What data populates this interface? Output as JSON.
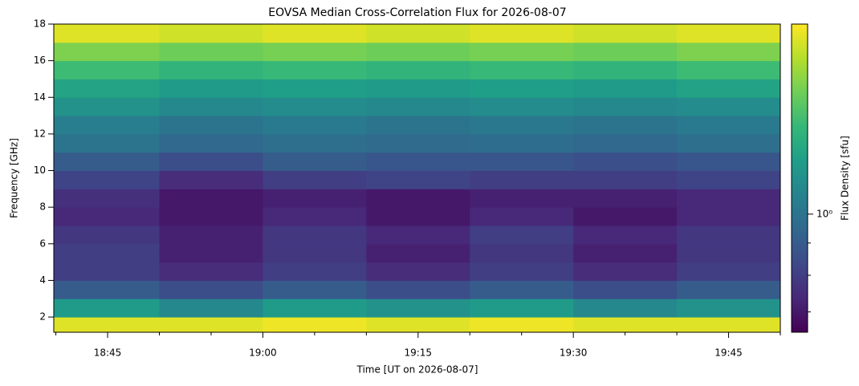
{
  "chart_data": {
    "type": "heatmap",
    "title": "EOVSA Median Cross-Correlation Flux for 2026-08-07",
    "x_label": "Time [UT on 2026-08-07]",
    "y_label": "Frequency [GHz]",
    "colorbar_label": "Flux Density [sfu]",
    "colormap": "viridis",
    "color_scale": "log",
    "x_edges": [
      1119.8,
      1130,
      1140,
      1150,
      1160,
      1170,
      1180,
      1190
    ],
    "y_edges": [
      1.17,
      2,
      3,
      4,
      5,
      6,
      7,
      8,
      9,
      10,
      11,
      12,
      13,
      14,
      15,
      16,
      17,
      18
    ],
    "values": [
      [
        1.9,
        1.9,
        1.95,
        1.9,
        1.95,
        1.9,
        1.9
      ],
      [
        1.2,
        1.1,
        1.2,
        1.15,
        1.2,
        1.1,
        1.15
      ],
      [
        0.9,
        0.85,
        0.9,
        0.85,
        0.9,
        0.85,
        0.9
      ],
      [
        0.8,
        0.75,
        0.8,
        0.75,
        0.8,
        0.75,
        0.8
      ],
      [
        0.8,
        0.72,
        0.78,
        0.72,
        0.78,
        0.72,
        0.78
      ],
      [
        0.78,
        0.72,
        0.78,
        0.74,
        0.8,
        0.74,
        0.78
      ],
      [
        0.74,
        0.7,
        0.74,
        0.7,
        0.74,
        0.7,
        0.74
      ],
      [
        0.76,
        0.7,
        0.72,
        0.7,
        0.72,
        0.72,
        0.74
      ],
      [
        0.82,
        0.75,
        0.8,
        0.82,
        0.8,
        0.8,
        0.82
      ],
      [
        0.9,
        0.85,
        0.9,
        0.88,
        0.88,
        0.86,
        0.88
      ],
      [
        1.0,
        0.95,
        0.98,
        0.96,
        0.97,
        0.95,
        0.98
      ],
      [
        1.05,
        1.0,
        1.03,
        1.0,
        1.02,
        1.0,
        1.03
      ],
      [
        1.15,
        1.1,
        1.12,
        1.1,
        1.12,
        1.1,
        1.12
      ],
      [
        1.25,
        1.2,
        1.22,
        1.2,
        1.22,
        1.2,
        1.24
      ],
      [
        1.4,
        1.35,
        1.38,
        1.35,
        1.38,
        1.35,
        1.4
      ],
      [
        1.6,
        1.55,
        1.58,
        1.55,
        1.58,
        1.55,
        1.6
      ],
      [
        1.9,
        1.85,
        1.9,
        1.85,
        1.9,
        1.85,
        1.9
      ]
    ],
    "xlim": [
      1119.8,
      1190
    ],
    "xticks": [
      {
        "value": 1125,
        "label": "18:45"
      },
      {
        "value": 1140,
        "label": "19:00"
      },
      {
        "value": 1155,
        "label": "19:15"
      },
      {
        "value": 1170,
        "label": "19:30"
      },
      {
        "value": 1185,
        "label": "19:45"
      }
    ],
    "xminorticks": [
      1120,
      1130,
      1135,
      1145,
      1150,
      1160,
      1165,
      1175,
      1180,
      1190
    ],
    "ylim": [
      1.17,
      18
    ],
    "yticks": [
      2,
      4,
      6,
      8,
      10,
      12,
      14,
      16,
      18
    ],
    "clim": [
      0.65,
      2
    ],
    "cticks": [
      {
        "value": 1,
        "label": "10⁰"
      }
    ],
    "cminorticks": [
      0.7,
      0.8,
      0.9
    ]
  }
}
